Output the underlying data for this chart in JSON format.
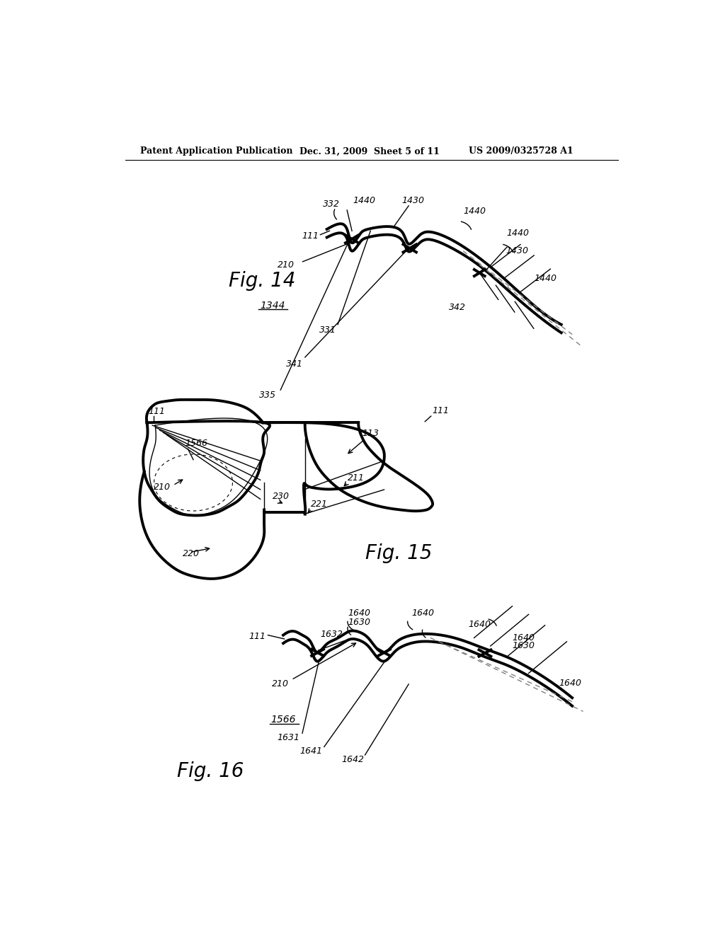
{
  "background_color": "#ffffff",
  "header_left": "Patent Application Publication",
  "header_mid": "Dec. 31, 2009  Sheet 5 of 11",
  "header_right": "US 2009/0325728 A1"
}
